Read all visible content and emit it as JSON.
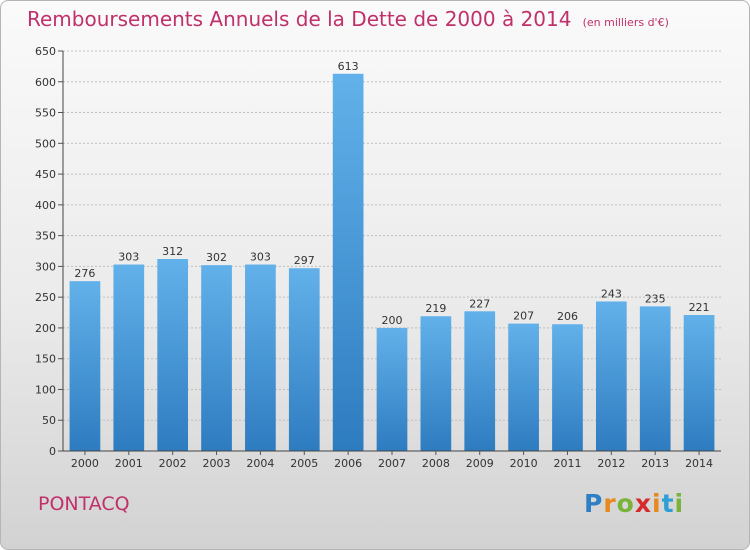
{
  "chart_data": {
    "type": "bar",
    "title": "Remboursements Annuels de la Dette de 2000 à 2014",
    "subtitle": "(en milliers d'€)",
    "categories": [
      "2000",
      "2001",
      "2002",
      "2003",
      "2004",
      "2005",
      "2006",
      "2007",
      "2008",
      "2009",
      "2010",
      "2011",
      "2012",
      "2013",
      "2014"
    ],
    "values": [
      276,
      303,
      312,
      302,
      303,
      297,
      613,
      200,
      219,
      227,
      207,
      206,
      243,
      235,
      221
    ],
    "ylim": [
      0,
      650
    ],
    "yticks": [
      0,
      50,
      100,
      150,
      200,
      250,
      300,
      350,
      400,
      450,
      500,
      550,
      600,
      650
    ],
    "grid": true,
    "legend": "none",
    "xlabel": "",
    "ylabel": ""
  },
  "commune": "PONTACQ",
  "logo": {
    "letters": [
      "P",
      "r",
      "o",
      "x",
      "i",
      "t",
      "i"
    ],
    "colors": [
      "#2e7fc4",
      "#e7891c",
      "#7ab33a",
      "#d52b2b",
      "#e7891c",
      "#2e9fd6",
      "#7ab33a"
    ]
  },
  "colors": {
    "title": "#c0306b",
    "bar_light": "#62b1ea",
    "bar_dark": "#2e7cc0",
    "grid": "#bfbfbf"
  }
}
